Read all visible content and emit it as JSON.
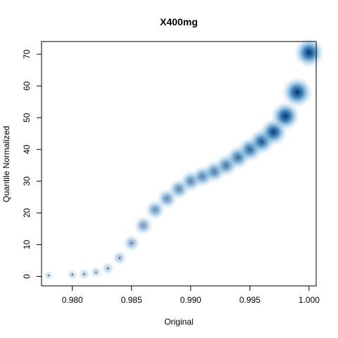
{
  "chart_data": {
    "type": "scatter",
    "title": "X400mg",
    "xlabel": "Original",
    "ylabel": "Quantile Normalized",
    "xlim": [
      0.9774,
      1.0006
    ],
    "ylim": [
      -3.0,
      74.0
    ],
    "x_ticks": [
      0.98,
      0.985,
      0.99,
      0.995,
      1.0
    ],
    "x_tick_labels": [
      "0.980",
      "0.985",
      "0.990",
      "0.995",
      "1.000"
    ],
    "y_ticks": [
      0,
      10,
      20,
      30,
      40,
      50,
      60,
      70
    ],
    "y_tick_labels": [
      "0",
      "10",
      "20",
      "30",
      "40",
      "50",
      "60",
      "70"
    ],
    "grid": false,
    "legend": "none",
    "style": "smoothed density scatter (blues)",
    "colors": {
      "dense": "#08306B",
      "mid": "#2171B5",
      "light": "#C6DBEF"
    },
    "points": [
      {
        "x": 0.978,
        "y": 0.3,
        "density": 0.02
      },
      {
        "x": 0.98,
        "y": 0.5,
        "density": 0.04
      },
      {
        "x": 0.981,
        "y": 0.7,
        "density": 0.05
      },
      {
        "x": 0.982,
        "y": 1.3,
        "density": 0.06
      },
      {
        "x": 0.983,
        "y": 2.5,
        "density": 0.08
      },
      {
        "x": 0.984,
        "y": 5.8,
        "density": 0.12
      },
      {
        "x": 0.985,
        "y": 10.5,
        "density": 0.2
      },
      {
        "x": 0.986,
        "y": 16.0,
        "density": 0.28
      },
      {
        "x": 0.987,
        "y": 21.0,
        "density": 0.32
      },
      {
        "x": 0.988,
        "y": 24.5,
        "density": 0.34
      },
      {
        "x": 0.989,
        "y": 27.5,
        "density": 0.36
      },
      {
        "x": 0.99,
        "y": 30.0,
        "density": 0.38
      },
      {
        "x": 0.991,
        "y": 31.5,
        "density": 0.4
      },
      {
        "x": 0.992,
        "y": 33.0,
        "density": 0.42
      },
      {
        "x": 0.993,
        "y": 35.0,
        "density": 0.45
      },
      {
        "x": 0.994,
        "y": 37.5,
        "density": 0.5
      },
      {
        "x": 0.995,
        "y": 40.0,
        "density": 0.55
      },
      {
        "x": 0.996,
        "y": 42.5,
        "density": 0.62
      },
      {
        "x": 0.997,
        "y": 45.5,
        "density": 0.72
      },
      {
        "x": 0.998,
        "y": 50.5,
        "density": 0.82
      },
      {
        "x": 0.999,
        "y": 58.0,
        "density": 0.95
      },
      {
        "x": 1.0,
        "y": 70.5,
        "density": 0.9
      }
    ]
  }
}
